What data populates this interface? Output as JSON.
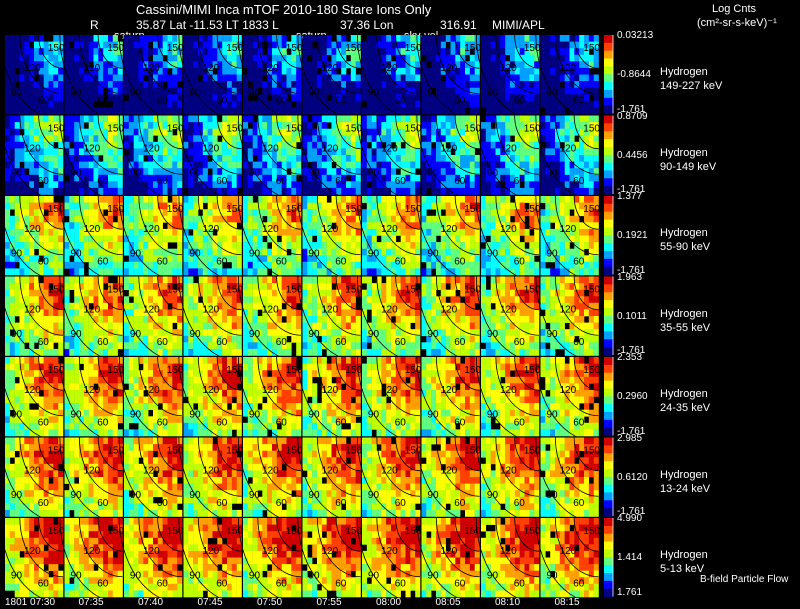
{
  "header": {
    "title": "Cassini/MIMI Inca mTOF  2010-180   Stare   Ions Only",
    "r_label": "R",
    "position_line": "35.87 Lat -11.53 LT 1833 L",
    "lon_line": "37.36 Lon",
    "last_value": "316.91",
    "credit": "MIMI/APL",
    "panel_tags": [
      "saturn",
      "saturn",
      "sky-vel"
    ]
  },
  "colorbar": {
    "title_line1": "Log Cnts",
    "title_line2": "(cm²-sr-s-keV)⁻¹",
    "colors": [
      "#000080",
      "#0000ff",
      "#00a0ff",
      "#00ffff",
      "#60ff80",
      "#c0ff00",
      "#ffff00",
      "#ffa000",
      "#ff4000",
      "#d00000"
    ]
  },
  "chart_data": {
    "type": "heatmap",
    "title": "Cassini/MIMI Inca mTOF  2010-180   Stare   Ions Only",
    "time_labels": [
      "1801 07:30",
      "07:35",
      "07:40",
      "07:45",
      "07:50",
      "07:55",
      "08:00",
      "08:05",
      "08:10",
      "08:15"
    ],
    "contour_labels": [
      "150",
      "120",
      "90",
      "60"
    ],
    "rows": [
      {
        "species": "Hydrogen",
        "energy": "149-227 keV",
        "max": "0.03213",
        "mid": "-0.8644",
        "min": "-1.761",
        "level": 0.15
      },
      {
        "species": "Hydrogen",
        "energy": "90-149 keV",
        "max": "0.8709",
        "mid": "0.4456",
        "min": "-1.761",
        "level": 0.35
      },
      {
        "species": "Hydrogen",
        "energy": "55-90 keV",
        "max": "1.377",
        "mid": "0.1921",
        "min": "-1.761",
        "level": 0.6
      },
      {
        "species": "Hydrogen",
        "energy": "35-55 keV",
        "max": "1.963",
        "mid": "0.1011",
        "min": "-1.761",
        "level": 0.68
      },
      {
        "species": "Hydrogen",
        "energy": "24-35 keV",
        "max": "2.353",
        "mid": "0.2960",
        "min": "-1.761",
        "level": 0.72
      },
      {
        "species": "Hydrogen",
        "energy": "13-24 keV",
        "max": "2.985",
        "mid": "0.6120",
        "min": "-1.761",
        "level": 0.75
      },
      {
        "species": "Hydrogen",
        "energy": "5-13 keV",
        "max": "4.990",
        "mid": "1.414",
        "min": "1.761",
        "level": 0.8
      }
    ],
    "footer_note": "B-field Particle Flow"
  }
}
